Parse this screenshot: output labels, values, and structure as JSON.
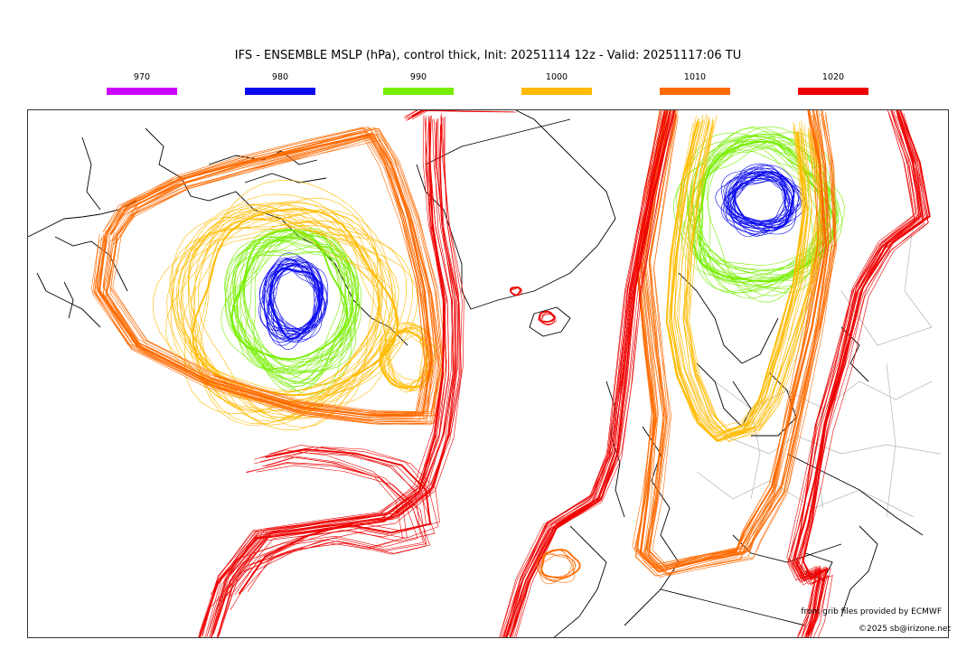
{
  "title": "IFS - ENSEMBLE MSLP (hPa), control thick, Init: 20251114 12z - Valid: 20251117:06 TU",
  "legend": [
    {
      "label": "970",
      "color": "#cc00ff"
    },
    {
      "label": "980",
      "color": "#0a0aee"
    },
    {
      "label": "990",
      "color": "#77ee00"
    },
    {
      "label": "1000",
      "color": "#ffbb00"
    },
    {
      "label": "1010",
      "color": "#ff6a00"
    },
    {
      "label": "1020",
      "color": "#ee0000"
    }
  ],
  "credit": "from grib files provided by ECMWF",
  "copyright": "©2025 sb@irizone.net",
  "ensemble_members": 50
}
